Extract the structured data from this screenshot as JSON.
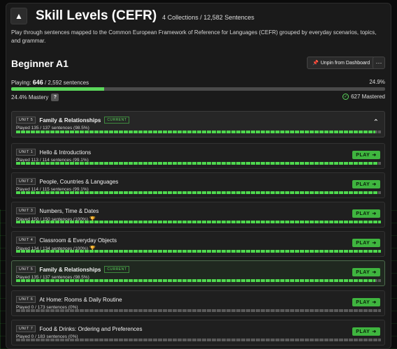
{
  "header": {
    "title": "Skill Levels (CEFR)",
    "meta": "4 Collections / 12,582 Sentences",
    "description": "Play through sentences mapped to the Common European Framework of Reference for Languages (CEFR) grouped by everyday scenarios, topics, and grammar."
  },
  "level": {
    "title": "Beginner A1",
    "unpin_label": "Unpin from Dashboard",
    "more_label": "···",
    "playing_label": "Playing:",
    "playing_count": "646",
    "playing_total": "/ 2,592 sentences",
    "percent": "24.9%",
    "progress_fraction": 0.249,
    "mastery_label": "24.4% Mastery",
    "help_label": "?",
    "mastered_label": "627 Mastered"
  },
  "current_badge": "CURRENT",
  "play_label": "PLAY",
  "expanded_unit": {
    "badge": "UNIT 5",
    "title": "Family & Relationships",
    "sub": "Played 135 / 137 sentences (98.5%)",
    "progress": 0.985
  },
  "units": [
    {
      "badge": "UNIT 1",
      "title": "Hello & Introductions",
      "sub": "Played 113 / 114 sentences (99.1%)",
      "progress": 0.991
    },
    {
      "badge": "UNIT 2",
      "title": "People, Countries & Languages",
      "sub": "Played 114 / 115 sentences (99.1%)",
      "progress": 0.991
    },
    {
      "badge": "UNIT 3",
      "title": "Numbers, Time & Dates",
      "sub": "Played 150 / 150 sentences (100%)",
      "progress": 1.0
    },
    {
      "badge": "UNIT 4",
      "title": "Classroom & Everyday Objects",
      "sub": "Played 134 / 134 sentences (100%)",
      "progress": 1.0
    },
    {
      "badge": "UNIT 5",
      "title": "Family & Relationships",
      "sub": "Played 135 / 137 sentences (98.5%)",
      "progress": 0.985
    },
    {
      "badge": "UNIT 6",
      "title": "At Home: Rooms & Daily Routine",
      "sub": "Played 0 / 173 sentences (0%)",
      "progress": 0.0
    },
    {
      "badge": "UNIT 7",
      "title": "Food & Drinks: Ordering and Preferences",
      "sub": "Played 0 / 183 sentences (0%)",
      "progress": 0.0
    }
  ]
}
